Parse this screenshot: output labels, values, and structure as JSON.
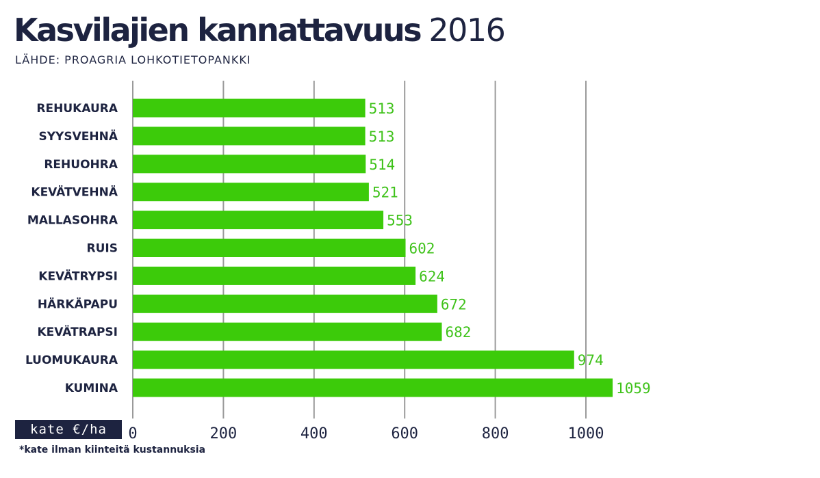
{
  "header": {
    "title_main": "Kasvilajien kannattavuus",
    "title_year": "2016",
    "source": "LÄHDE: PROAGRIA LOHKOTIETOPANKKI"
  },
  "footer": {
    "unit_label": "kate €/ha",
    "footnote": "*kate ilman kiinteitä kustannuksia"
  },
  "colors": {
    "bar": "#3ccb0a",
    "value_label": "#3fc21a",
    "text": "#1d2340",
    "grid": "#9a9a9a"
  },
  "chart_data": {
    "type": "bar",
    "orientation": "horizontal",
    "categories": [
      "REHUKAURA",
      "SYYSVEHNÄ",
      "REHUOHRA",
      "KEVÄTVEHNÄ",
      "MALLASOHRA",
      "RUIS",
      "KEVÄTRYPSI",
      "HÄRKÄPAPU",
      "KEVÄTRAPSI",
      "LUOMUKAURA",
      "KUMINA"
    ],
    "values": [
      513,
      513,
      514,
      521,
      553,
      602,
      624,
      672,
      682,
      974,
      1059
    ],
    "data_labels": [
      "513",
      "513",
      "514",
      "521",
      "553",
      "602",
      "624",
      "672",
      "682",
      "974",
      "1059"
    ],
    "xlim": [
      0,
      1000
    ],
    "xticks": [
      0,
      200,
      400,
      600,
      800,
      1000
    ],
    "xtick_labels": [
      "0",
      "200",
      "400",
      "600",
      "800",
      "1000"
    ],
    "grid": true,
    "legend": "none"
  }
}
